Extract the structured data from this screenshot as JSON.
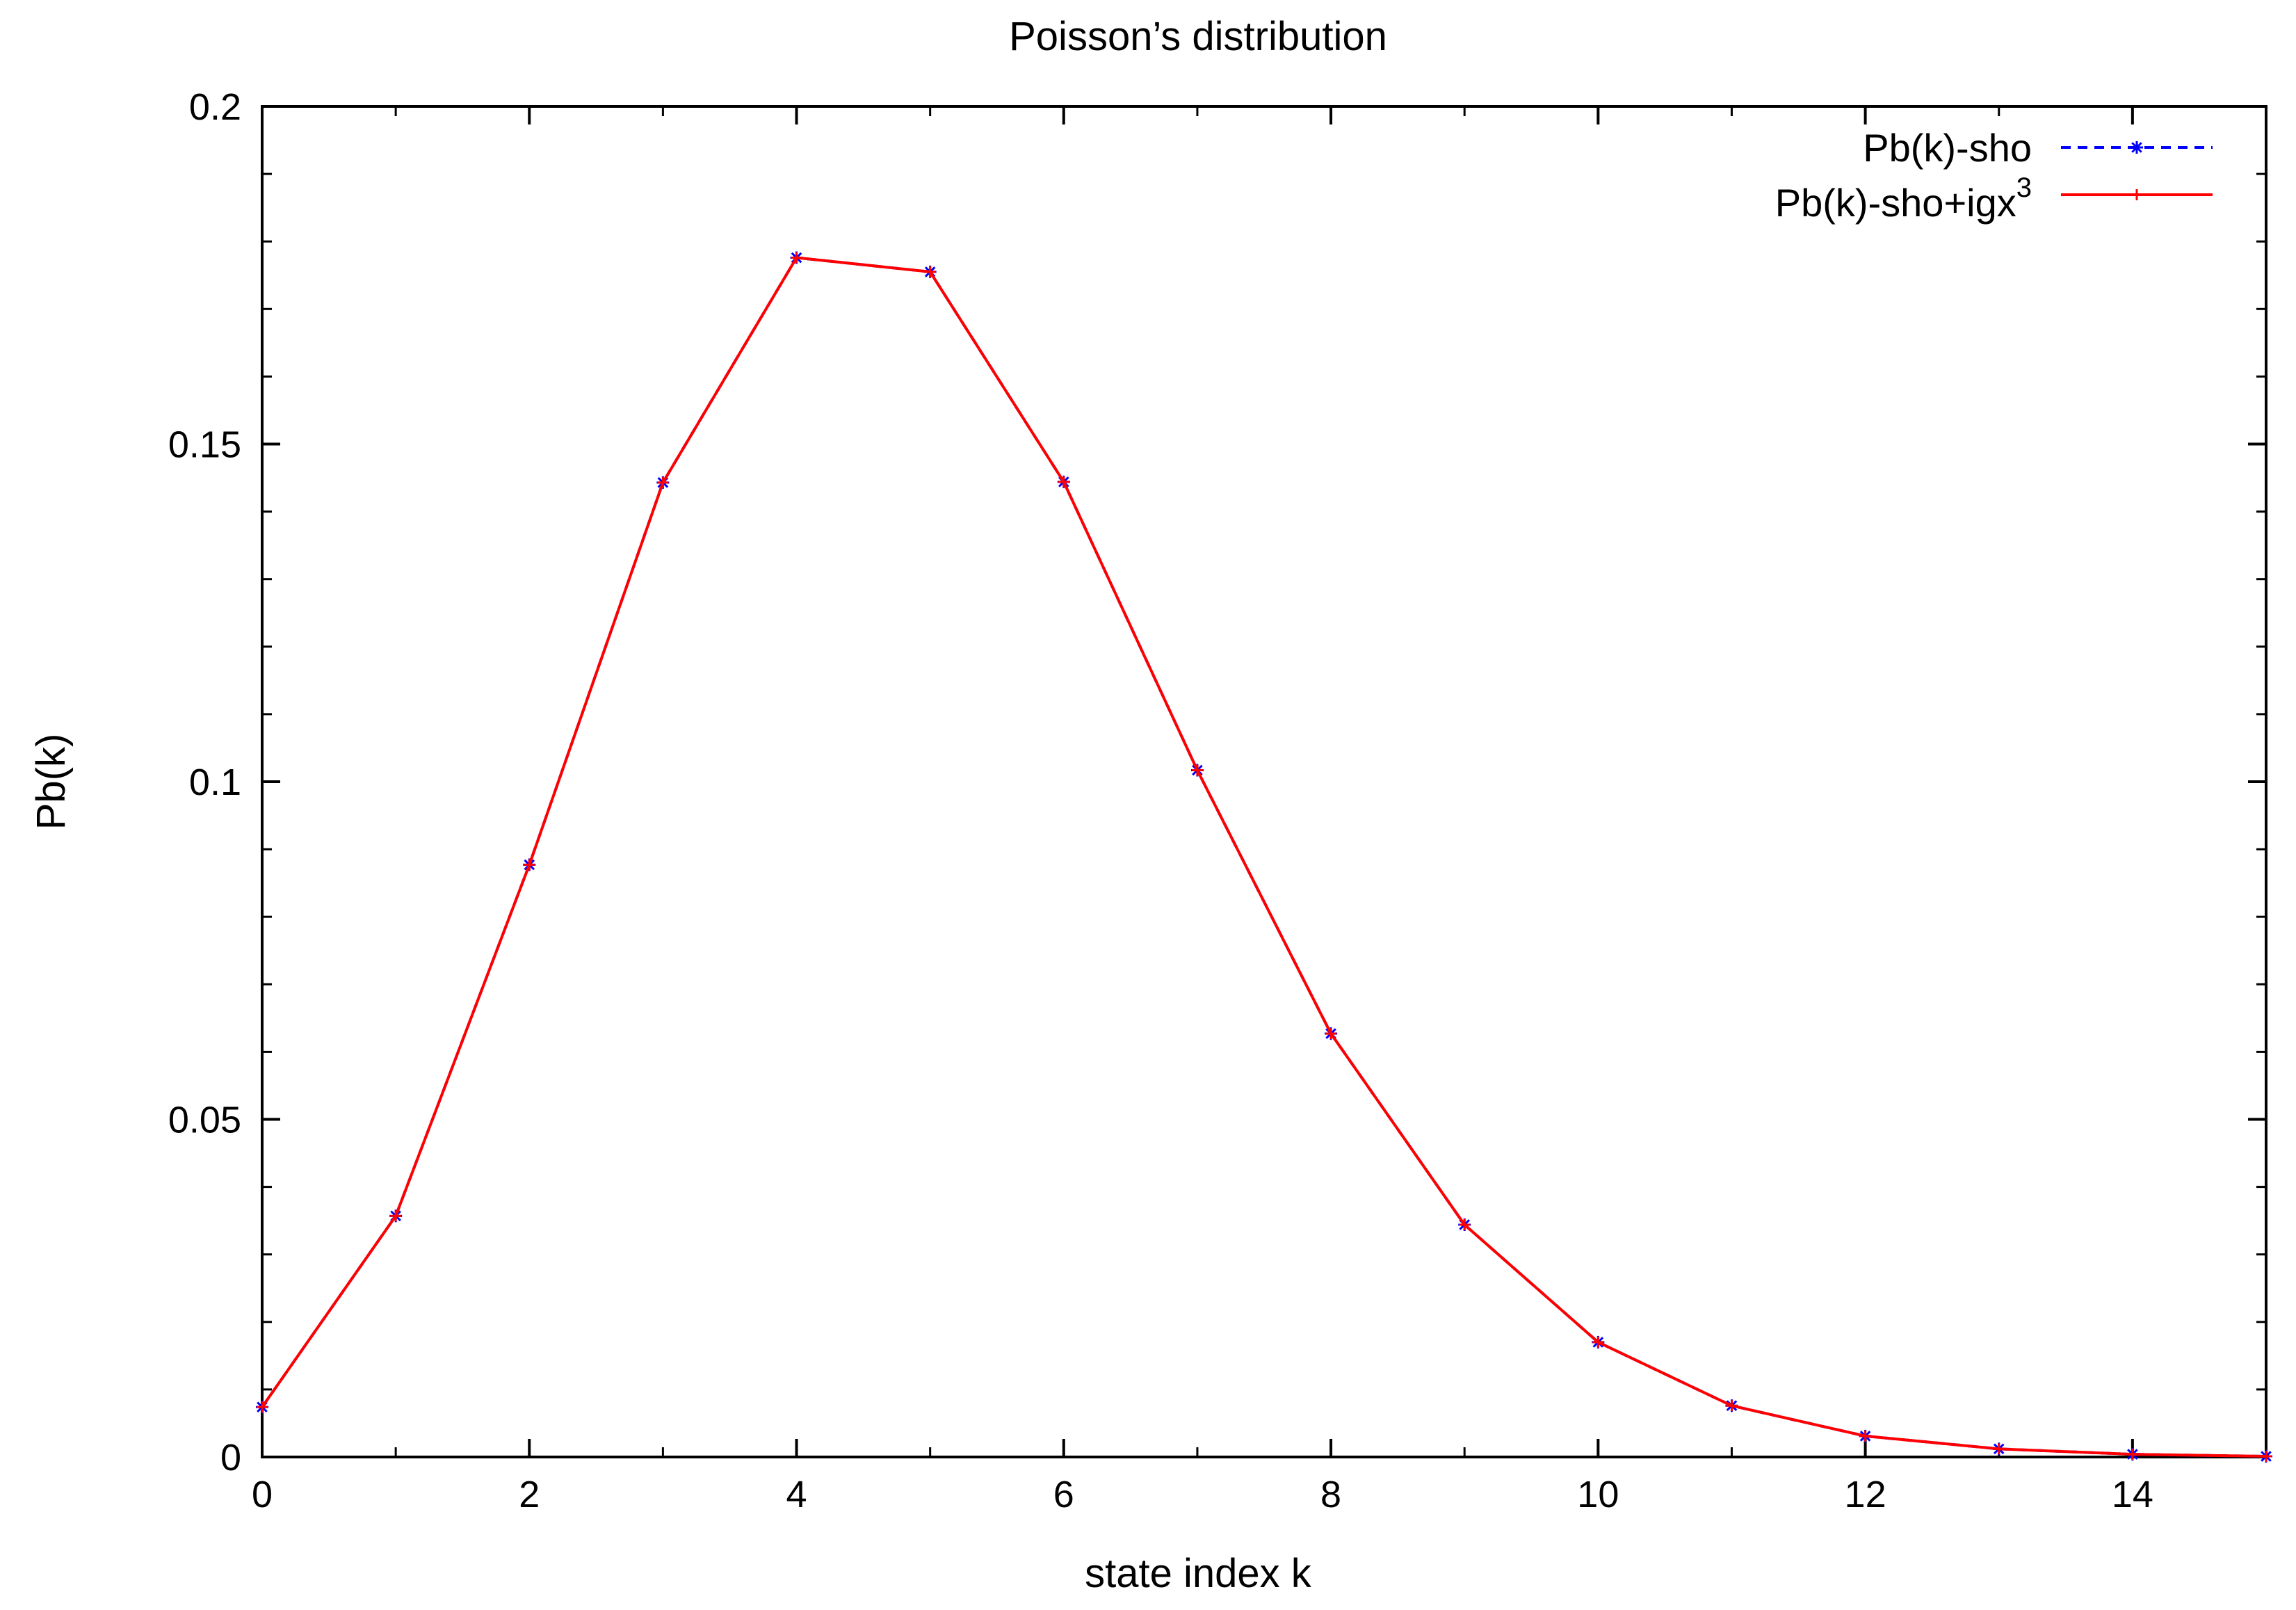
{
  "colors": {
    "series_sho": "#0000ff",
    "series_igx": "#ff0000",
    "axes": "#000000"
  },
  "chart_data": {
    "type": "line",
    "title": "Poisson’s distribution",
    "xlabel": "state index k",
    "ylabel": "Pb(k)",
    "xlim": [
      0,
      15
    ],
    "ylim": [
      0,
      0.2
    ],
    "xticks": [
      0,
      2,
      4,
      6,
      8,
      10,
      12,
      14
    ],
    "xtick_labels": [
      "0",
      "2",
      "4",
      "6",
      "8",
      "10",
      "12",
      "14"
    ],
    "yticks": [
      0,
      0.05,
      0.1,
      0.15,
      0.2
    ],
    "ytick_labels": [
      "0",
      "0.05",
      "0.1",
      "0.15",
      "0.2"
    ],
    "grid": false,
    "legend_position": "top-right",
    "x": [
      0,
      1,
      2,
      3,
      4,
      5,
      6,
      7,
      8,
      9,
      10,
      11,
      12,
      13,
      14,
      15
    ],
    "series": [
      {
        "name": "Pb(k)-sho",
        "color": "#0000ff",
        "line_style": "dashed",
        "marker": "star",
        "values": [
          0.0074,
          0.0357,
          0.0877,
          0.1443,
          0.1776,
          0.1755,
          0.1444,
          0.1017,
          0.0627,
          0.0344,
          0.017,
          0.0076,
          0.0031,
          0.0012,
          0.0004,
          0.0001
        ]
      },
      {
        "name": "Pb(k)-sho+igx",
        "name_superscript": "3",
        "color": "#ff0000",
        "line_style": "solid",
        "marker": "plus",
        "values": [
          0.0074,
          0.0357,
          0.0877,
          0.1443,
          0.1776,
          0.1755,
          0.1444,
          0.1017,
          0.0627,
          0.0344,
          0.017,
          0.0076,
          0.0031,
          0.0012,
          0.0004,
          0.0001
        ]
      }
    ]
  }
}
